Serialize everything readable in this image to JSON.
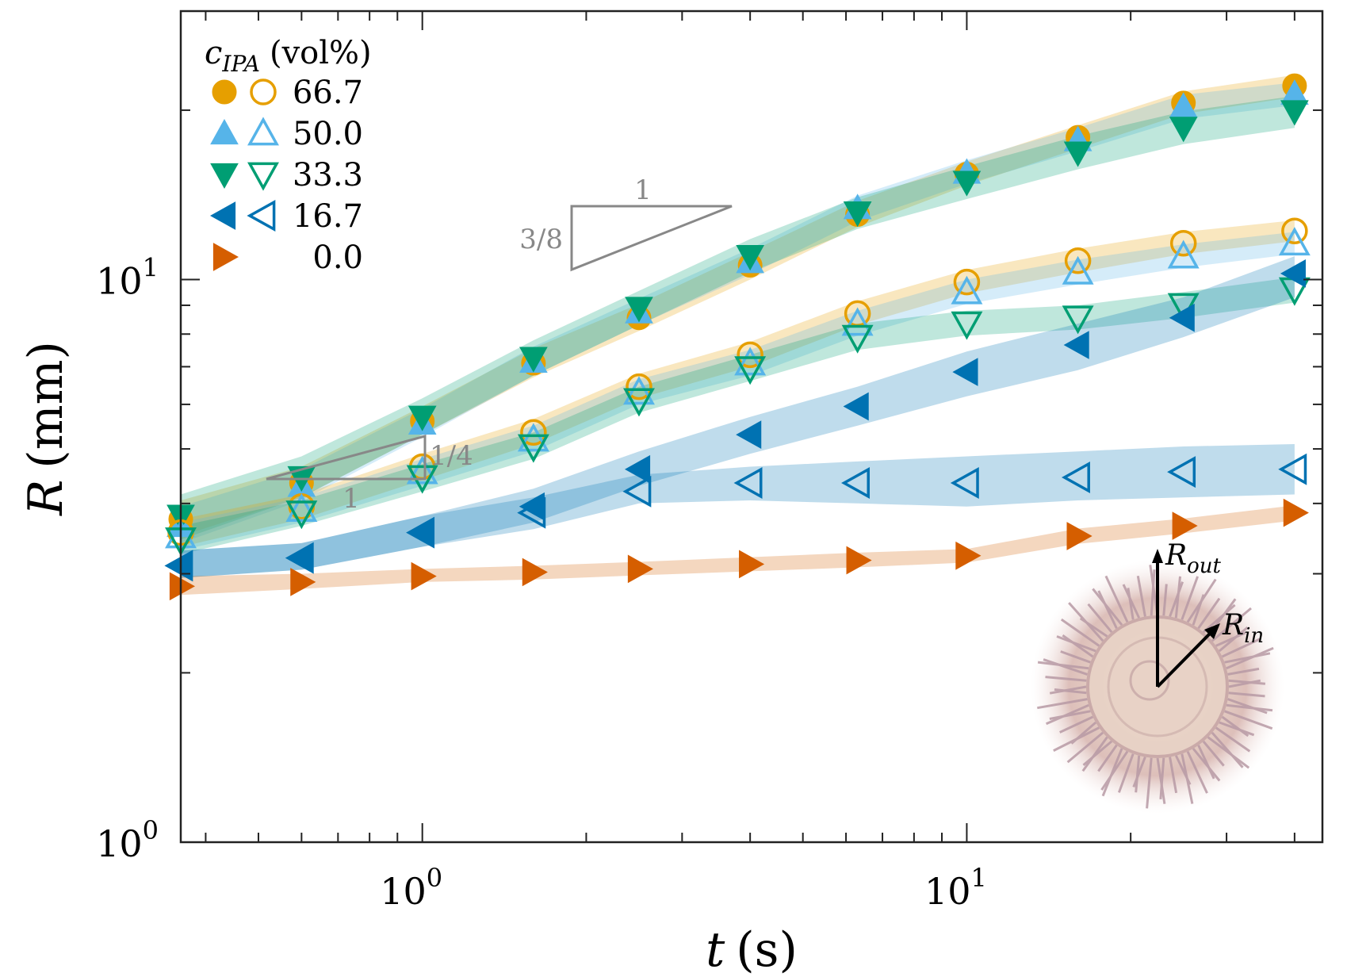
{
  "chart_data": {
    "type": "scatter",
    "x_scale": "log",
    "y_scale": "log",
    "xlim": [
      0.36,
      45
    ],
    "ylim": [
      1.0,
      30.0
    ],
    "x_ticks": [
      {
        "value": 1,
        "base": "10",
        "exp": "0"
      },
      {
        "value": 10,
        "base": "10",
        "exp": "1"
      }
    ],
    "y_ticks": [
      {
        "value": 1,
        "base": "10",
        "exp": "0"
      },
      {
        "value": 10,
        "base": "10",
        "exp": "1"
      }
    ],
    "xlabel": {
      "symbol": "t",
      "unit": "(s)"
    },
    "ylabel": {
      "symbol": "R",
      "unit": "(mm)"
    },
    "legend": {
      "title_symbol": "c",
      "title_subscript": "IPA",
      "title_unit": "(vol%)",
      "location": "top-left",
      "entries": [
        "66.7",
        "50.0",
        "33.3",
        "16.7",
        "0.0"
      ]
    },
    "x": [
      0.36,
      0.6,
      1.0,
      1.6,
      2.5,
      4.0,
      6.3,
      10.0,
      16.0,
      25.0,
      40.0
    ],
    "series": [
      {
        "name": "66.7",
        "radius": "outer",
        "marker": "circle",
        "filled": true,
        "color": "#E69F00",
        "values": [
          3.75,
          4.35,
          5.6,
          7.1,
          8.55,
          10.6,
          13.05,
          15.4,
          17.9,
          20.6,
          22.1
        ],
        "band": [
          [
            3.5,
            4.05
          ],
          [
            4.1,
            4.65
          ],
          [
            5.3,
            5.95
          ],
          [
            6.7,
            7.55
          ],
          [
            8.1,
            9.05
          ],
          [
            10.0,
            11.2
          ],
          [
            12.4,
            13.8
          ],
          [
            14.7,
            16.2
          ],
          [
            17.1,
            18.8
          ],
          [
            19.7,
            21.6
          ],
          [
            21.1,
            23.1
          ]
        ]
      },
      {
        "name": "50.0",
        "radius": "outer",
        "marker": "triangle-up",
        "filled": true,
        "color": "#56B4E9",
        "values": [
          3.65,
          4.3,
          5.55,
          7.15,
          8.75,
          10.75,
          13.4,
          15.5,
          17.7,
          20.3,
          21.4
        ],
        "band": [
          [
            3.4,
            3.95
          ],
          [
            4.05,
            4.6
          ],
          [
            5.25,
            5.9
          ],
          [
            6.75,
            7.6
          ],
          [
            8.3,
            9.25
          ],
          [
            10.2,
            11.35
          ],
          [
            12.7,
            14.1
          ],
          [
            14.8,
            16.3
          ],
          [
            16.9,
            18.6
          ],
          [
            19.3,
            21.3
          ],
          [
            20.4,
            22.4
          ]
        ]
      },
      {
        "name": "33.3",
        "radius": "outer",
        "marker": "triangle-down",
        "filled": true,
        "color": "#009E73",
        "values": [
          3.8,
          4.45,
          5.7,
          7.25,
          8.9,
          11.0,
          13.15,
          14.9,
          16.8,
          18.6,
          19.9
        ],
        "band": [
          [
            3.45,
            4.15
          ],
          [
            4.1,
            4.85
          ],
          [
            5.3,
            6.15
          ],
          [
            6.75,
            7.8
          ],
          [
            8.3,
            9.55
          ],
          [
            10.3,
            11.8
          ],
          [
            12.3,
            14.0
          ],
          [
            13.9,
            15.9
          ],
          [
            15.7,
            18.0
          ],
          [
            17.4,
            19.9
          ],
          [
            18.6,
            21.2
          ]
        ]
      },
      {
        "name": "66.7",
        "radius": "inner",
        "marker": "circle",
        "filled": false,
        "color": "#E69F00",
        "values": [
          3.55,
          3.95,
          4.65,
          5.35,
          6.45,
          7.35,
          8.7,
          9.9,
          10.8,
          11.6,
          12.2
        ],
        "band": [
          [
            3.35,
            3.75
          ],
          [
            3.75,
            4.15
          ],
          [
            4.4,
            4.9
          ],
          [
            5.1,
            5.65
          ],
          [
            6.15,
            6.8
          ],
          [
            7.0,
            7.75
          ],
          [
            8.3,
            9.15
          ],
          [
            9.45,
            10.4
          ],
          [
            10.3,
            11.35
          ],
          [
            11.1,
            12.15
          ],
          [
            11.7,
            12.75
          ]
        ]
      },
      {
        "name": "50.0",
        "radius": "inner",
        "marker": "triangle-up",
        "filled": false,
        "color": "#56B4E9",
        "values": [
          3.5,
          3.9,
          4.55,
          5.2,
          6.3,
          7.1,
          8.35,
          9.5,
          10.3,
          11.0,
          11.6
        ],
        "band": [
          [
            3.3,
            3.7
          ],
          [
            3.7,
            4.1
          ],
          [
            4.3,
            4.8
          ],
          [
            4.95,
            5.5
          ],
          [
            6.0,
            6.65
          ],
          [
            6.75,
            7.5
          ],
          [
            7.95,
            8.8
          ],
          [
            9.05,
            10.0
          ],
          [
            9.8,
            10.85
          ],
          [
            10.5,
            11.55
          ],
          [
            11.1,
            12.15
          ]
        ]
      },
      {
        "name": "33.3",
        "radius": "inner",
        "marker": "triangle-down",
        "filled": false,
        "color": "#009E73",
        "values": [
          3.45,
          3.85,
          4.45,
          5.05,
          6.1,
          6.95,
          7.9,
          8.35,
          8.55,
          9.0,
          9.6
        ],
        "band": [
          [
            3.25,
            3.65
          ],
          [
            3.65,
            4.05
          ],
          [
            4.2,
            4.7
          ],
          [
            4.8,
            5.35
          ],
          [
            5.8,
            6.45
          ],
          [
            6.6,
            7.35
          ],
          [
            7.5,
            8.35
          ],
          [
            7.95,
            8.8
          ],
          [
            8.15,
            9.0
          ],
          [
            8.55,
            9.5
          ],
          [
            9.1,
            10.1
          ]
        ]
      },
      {
        "name": "16.7",
        "radius": "outer",
        "marker": "triangle-left",
        "filled": true,
        "color": "#0072B2",
        "values": [
          3.1,
          3.2,
          3.55,
          3.95,
          4.6,
          5.3,
          5.95,
          6.85,
          7.65,
          8.55,
          10.25
        ],
        "band": [
          [
            2.95,
            3.3
          ],
          [
            3.05,
            3.4
          ],
          [
            3.35,
            3.8
          ],
          [
            3.7,
            4.25
          ],
          [
            4.3,
            4.95
          ],
          [
            4.9,
            5.7
          ],
          [
            5.5,
            6.45
          ],
          [
            6.2,
            7.45
          ],
          [
            6.9,
            8.35
          ],
          [
            7.9,
            9.3
          ],
          [
            9.3,
            11.0
          ]
        ]
      },
      {
        "name": "16.7",
        "radius": "inner",
        "marker": "triangle-left",
        "filled": false,
        "color": "#0072B2",
        "values": [
          3.1,
          3.2,
          3.55,
          3.85,
          4.2,
          4.35,
          4.35,
          4.35,
          4.45,
          4.55,
          4.6
        ],
        "band": [
          [
            2.95,
            3.3
          ],
          [
            3.05,
            3.4
          ],
          [
            3.35,
            3.8
          ],
          [
            3.6,
            4.1
          ],
          [
            4.0,
            4.5
          ],
          [
            4.05,
            4.65
          ],
          [
            4.0,
            4.75
          ],
          [
            3.95,
            4.85
          ],
          [
            4.05,
            4.95
          ],
          [
            4.1,
            5.05
          ],
          [
            4.15,
            5.1
          ]
        ]
      },
      {
        "name": "0.0",
        "radius": "outer",
        "marker": "triangle-right",
        "filled": true,
        "color": "#D55E00",
        "values": [
          2.85,
          2.9,
          2.97,
          3.02,
          3.06,
          3.12,
          3.17,
          3.23,
          3.5,
          3.65,
          3.85
        ],
        "band": [
          [
            2.75,
            2.97
          ],
          [
            2.82,
            3.0
          ],
          [
            2.9,
            3.06
          ],
          [
            2.93,
            3.1
          ],
          [
            2.98,
            3.15
          ],
          [
            3.03,
            3.21
          ],
          [
            3.08,
            3.27
          ],
          [
            3.14,
            3.32
          ],
          [
            3.39,
            3.61
          ],
          [
            3.54,
            3.76
          ],
          [
            3.73,
            3.97
          ]
        ]
      }
    ],
    "slope_markers": [
      {
        "run": "1",
        "rise": "3/8"
      },
      {
        "run": "1",
        "rise": "1/4"
      }
    ],
    "inset": {
      "description": "radial fingering pattern",
      "outer_label": {
        "symbol": "R",
        "subscript": "out"
      },
      "inner_label": {
        "symbol": "R",
        "subscript": "in"
      }
    }
  }
}
